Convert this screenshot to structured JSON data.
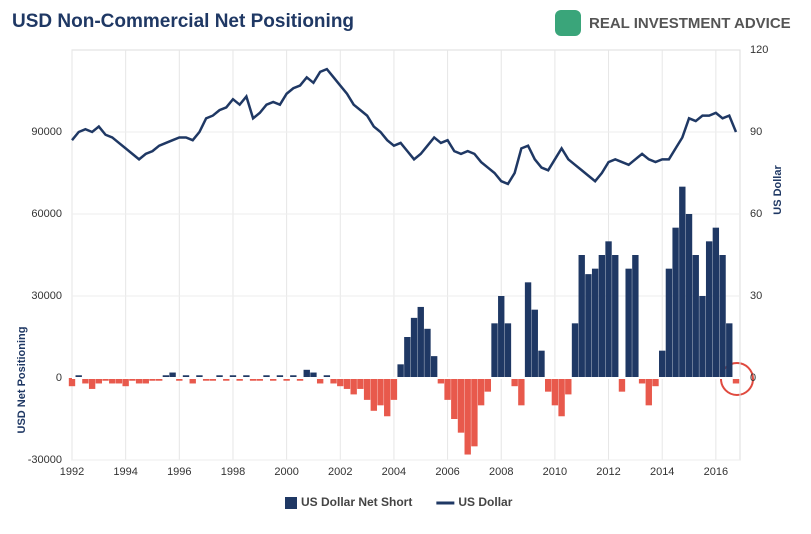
{
  "chart_data": {
    "type": "bar-line",
    "title": "USD Non-Commercial Net Positioning",
    "brand": "REAL INVESTMENT ADVICE",
    "ylabel": "USD Net Positioning",
    "y2label": "US Dollar",
    "x": [
      1992,
      1992.25,
      1992.5,
      1992.75,
      1993,
      1993.25,
      1993.5,
      1993.75,
      1994,
      1994.25,
      1994.5,
      1994.75,
      1995,
      1995.25,
      1995.5,
      1995.75,
      1996,
      1996.25,
      1996.5,
      1996.75,
      1997,
      1997.25,
      1997.5,
      1997.75,
      1998,
      1998.25,
      1998.5,
      1998.75,
      1999,
      1999.25,
      1999.5,
      1999.75,
      2000,
      2000.25,
      2000.5,
      2000.75,
      2001,
      2001.25,
      2001.5,
      2001.75,
      2002,
      2002.25,
      2002.5,
      2002.75,
      2003,
      2003.25,
      2003.5,
      2003.75,
      2004,
      2004.25,
      2004.5,
      2004.75,
      2005,
      2005.25,
      2005.5,
      2005.75,
      2006,
      2006.25,
      2006.5,
      2006.75,
      2007,
      2007.25,
      2007.5,
      2007.75,
      2008,
      2008.25,
      2008.5,
      2008.75,
      2009,
      2009.25,
      2009.5,
      2009.75,
      2010,
      2010.25,
      2010.5,
      2010.75,
      2011,
      2011.25,
      2011.5,
      2011.75,
      2012,
      2012.25,
      2012.5,
      2012.75,
      2013,
      2013.25,
      2013.5,
      2013.75,
      2014,
      2014.25,
      2014.5,
      2014.75,
      2015,
      2015.25,
      2015.5,
      2015.75,
      2016,
      2016.25,
      2016.5,
      2016.75
    ],
    "series": [
      {
        "name": "US Dollar Net Short",
        "color": "#1f3864",
        "negative_color": "#e8594c",
        "kind": "bar",
        "axis": "y",
        "values": [
          -3000,
          1000,
          -2000,
          -4000,
          -2000,
          -1000,
          -2000,
          -2000,
          -3000,
          -1000,
          -2000,
          -2000,
          -1000,
          -1000,
          1000,
          2000,
          -1000,
          1000,
          -2000,
          1000,
          -1000,
          -1000,
          1000,
          -1000,
          1000,
          -1000,
          1000,
          -1000,
          -1000,
          1000,
          -1000,
          1000,
          -1000,
          1000,
          -1000,
          3000,
          2000,
          -2000,
          1000,
          -2000,
          -3000,
          -4000,
          -6000,
          -4000,
          -8000,
          -12000,
          -10000,
          -14000,
          -8000,
          5000,
          15000,
          22000,
          26000,
          18000,
          8000,
          -2000,
          -8000,
          -15000,
          -20000,
          -28000,
          -25000,
          -10000,
          -5000,
          20000,
          30000,
          20000,
          -3000,
          -10000,
          35000,
          25000,
          10000,
          -5000,
          -10000,
          -14000,
          -6000,
          20000,
          45000,
          38000,
          40000,
          45000,
          50000,
          45000,
          -5000,
          40000,
          45000,
          -2000,
          -10000,
          -3000,
          10000,
          40000,
          55000,
          70000,
          60000,
          45000,
          30000,
          50000,
          55000,
          45000,
          20000,
          -2000
        ]
      },
      {
        "name": "US Dollar",
        "color": "#1f3864",
        "kind": "line",
        "axis": "y2",
        "values": [
          87,
          90,
          91,
          90,
          92,
          89,
          88,
          86,
          84,
          82,
          80,
          82,
          83,
          85,
          86,
          87,
          88,
          88,
          87,
          90,
          95,
          96,
          98,
          99,
          102,
          100,
          103,
          95,
          97,
          100,
          101,
          100,
          104,
          106,
          107,
          110,
          108,
          112,
          113,
          110,
          107,
          104,
          100,
          98,
          96,
          92,
          90,
          87,
          85,
          86,
          83,
          80,
          82,
          85,
          88,
          86,
          87,
          83,
          82,
          83,
          82,
          79,
          77,
          75,
          72,
          71,
          75,
          84,
          85,
          80,
          77,
          76,
          80,
          84,
          80,
          78,
          76,
          74,
          72,
          75,
          79,
          80,
          79,
          78,
          80,
          82,
          80,
          79,
          80,
          80,
          84,
          88,
          95,
          94,
          96,
          96,
          97,
          95,
          96,
          90
        ]
      }
    ],
    "xlim": [
      1992,
      2016.9
    ],
    "xticks": [
      1992,
      1994,
      1996,
      1998,
      2000,
      2002,
      2004,
      2006,
      2008,
      2010,
      2012,
      2014,
      2016
    ],
    "ylim": [
      -30000,
      120000
    ],
    "yticks": [
      -30000,
      0,
      30000,
      60000,
      90000
    ],
    "y2lim": [
      -30,
      120
    ],
    "y2ticks": [
      0,
      30,
      60,
      90,
      120
    ],
    "grid": true,
    "legend": "bottom"
  }
}
